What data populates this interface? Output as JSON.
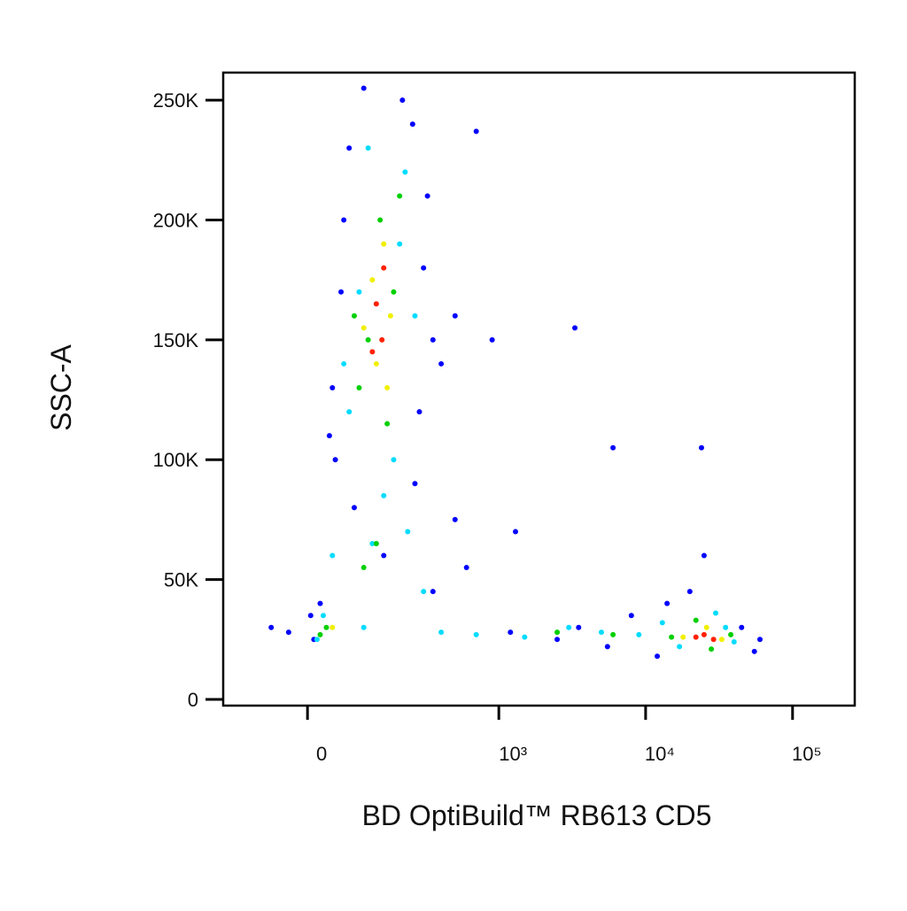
{
  "chart_data": {
    "type": "scatter",
    "x_label": "BD OptiBuild™ RB613 CD5",
    "y_label": "SSC-A",
    "xscale": "biexponential",
    "xlim": [
      -174,
      265000
    ],
    "xticks": [
      0,
      {
        "value": 1000,
        "label": "10³"
      },
      {
        "value": 10000,
        "label": "10⁴"
      },
      {
        "value": 100000,
        "label": "10⁵"
      }
    ],
    "ylim": [
      -2600,
      261500
    ],
    "yticks": [
      0,
      {
        "value": 50000,
        "label": "50K"
      },
      {
        "value": 100000,
        "label": "100K"
      },
      {
        "value": 150000,
        "label": "150K"
      },
      {
        "value": 200000,
        "label": "200K"
      },
      {
        "value": 250000,
        "label": "250K"
      }
    ],
    "point_groups": [
      {
        "color": "#0000ff",
        "x": [
          40,
          60,
          250,
          300,
          45,
          350,
          280,
          70,
          320,
          55,
          400,
          35,
          100,
          210,
          260,
          80,
          150,
          500,
          600,
          900,
          20,
          10,
          -30,
          -60,
          5,
          350,
          1200,
          2500,
          3500,
          5500,
          8000,
          12000,
          45000,
          60000,
          55000,
          14000,
          20000,
          25000,
          3300,
          6000,
          24000,
          700,
          500,
          1300
        ],
        "y": [
          130000,
          200000,
          240000,
          180000,
          100000,
          150000,
          120000,
          230000,
          210000,
          170000,
          140000,
          110000,
          255000,
          250000,
          90000,
          80000,
          60000,
          75000,
          55000,
          150000,
          40000,
          25000,
          28000,
          30000,
          35000,
          45000,
          28000,
          25000,
          30000,
          22000,
          35000,
          18000,
          30000,
          25000,
          20000,
          40000,
          45000,
          60000,
          155000,
          105000,
          105000,
          237000,
          160000,
          70000
        ]
      },
      {
        "color": "#00dcff",
        "x": [
          70,
          110,
          220,
          180,
          90,
          150,
          260,
          200,
          60,
          120,
          230,
          40,
          25,
          15,
          100,
          300,
          400,
          700,
          1500,
          3000,
          5000,
          9000,
          13000,
          35000,
          40000,
          30000,
          17000
        ],
        "y": [
          120000,
          230000,
          220000,
          100000,
          170000,
          85000,
          160000,
          190000,
          140000,
          65000,
          70000,
          60000,
          35000,
          25000,
          30000,
          45000,
          28000,
          27000,
          26000,
          30000,
          28000,
          27000,
          32000,
          30000,
          24000,
          36000,
          22000
        ]
      },
      {
        "color": "#00d000",
        "x": [
          90,
          140,
          180,
          110,
          160,
          200,
          80,
          130,
          100,
          30,
          20,
          2500,
          6000,
          15000,
          22000,
          38000,
          28000
        ],
        "y": [
          130000,
          200000,
          170000,
          150000,
          115000,
          210000,
          160000,
          65000,
          55000,
          30000,
          27000,
          28000,
          27000,
          26000,
          33000,
          27000,
          21000
        ]
      },
      {
        "color": "#f0f000",
        "x": [
          120,
          150,
          170,
          130,
          100,
          160,
          40,
          18000,
          26000,
          33000
        ],
        "y": [
          175000,
          190000,
          160000,
          140000,
          155000,
          130000,
          30000,
          26000,
          30000,
          25000
        ]
      },
      {
        "color": "#ff2000",
        "x": [
          130,
          145,
          120,
          150,
          25000,
          29000,
          22000
        ],
        "y": [
          165000,
          150000,
          145000,
          180000,
          27000,
          25000,
          26000
        ]
      }
    ]
  }
}
